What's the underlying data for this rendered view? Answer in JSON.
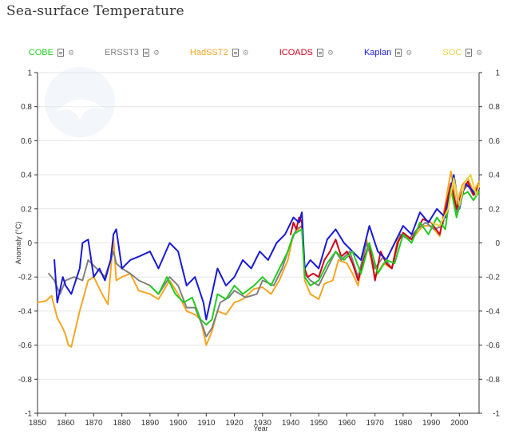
{
  "title": "Sea-surface Temperature",
  "chart_data": {
    "type": "line",
    "title": "Sea-surface Temperature",
    "xlabel": "Year",
    "ylabel": "Anomaly (°C)",
    "xlim": [
      1850,
      2007
    ],
    "ylim": [
      -1,
      1
    ],
    "x_ticks": [
      1850,
      1860,
      1870,
      1880,
      1890,
      1900,
      1910,
      1920,
      1930,
      1940,
      1950,
      1960,
      1970,
      1980,
      1990,
      2000
    ],
    "y_ticks": [
      -1,
      -0.8,
      -0.6,
      -0.4,
      -0.2,
      0,
      0.2,
      0.4,
      0.6,
      0.8,
      1
    ],
    "y_tick_labels": [
      "-1",
      "-0.8",
      "-0.6",
      "-0.4",
      "-0.2",
      "0",
      "0.2",
      "0.4",
      "0.6",
      "0.8",
      "1"
    ],
    "grid": "horizontal",
    "legend_position": "top-center",
    "series": [
      {
        "name": "HadSST2",
        "color": "#f5a623",
        "x": [
          1850,
          1853,
          1855,
          1857,
          1859,
          1860,
          1861,
          1862,
          1865,
          1868,
          1870,
          1873,
          1875,
          1877,
          1878,
          1880,
          1883,
          1886,
          1890,
          1893,
          1897,
          1900,
          1903,
          1906,
          1908,
          1910,
          1912,
          1914,
          1917,
          1920,
          1923,
          1927,
          1930,
          1933,
          1936,
          1939,
          1941,
          1944,
          1945,
          1947,
          1950,
          1952,
          1955,
          1957,
          1960,
          1962,
          1964,
          1967,
          1970,
          1973,
          1976,
          1978,
          1980,
          1983,
          1987,
          1990,
          1993,
          1997,
          1999,
          2001,
          2003,
          2005,
          2007
        ],
        "y": [
          -0.35,
          -0.34,
          -0.31,
          -0.44,
          -0.5,
          -0.54,
          -0.6,
          -0.61,
          -0.4,
          -0.22,
          -0.2,
          -0.3,
          -0.36,
          0.03,
          -0.22,
          -0.2,
          -0.18,
          -0.28,
          -0.3,
          -0.33,
          -0.22,
          -0.3,
          -0.4,
          -0.42,
          -0.45,
          -0.6,
          -0.52,
          -0.4,
          -0.42,
          -0.35,
          -0.33,
          -0.27,
          -0.26,
          -0.3,
          -0.22,
          -0.1,
          0.05,
          0.1,
          -0.22,
          -0.3,
          -0.33,
          -0.24,
          -0.22,
          -0.1,
          -0.12,
          -0.18,
          -0.25,
          0.02,
          -0.2,
          -0.12,
          -0.15,
          0.02,
          0.05,
          0.02,
          0.1,
          0.1,
          0.04,
          0.42,
          0.22,
          0.34,
          0.38,
          0.3,
          0.36
        ]
      },
      {
        "name": "ERSST3",
        "color": "#808080",
        "x": [
          1854,
          1856,
          1858,
          1860,
          1863,
          1866,
          1868,
          1871,
          1874,
          1877,
          1878,
          1880,
          1883,
          1886,
          1890,
          1893,
          1897,
          1900,
          1903,
          1906,
          1909,
          1910,
          1912,
          1915,
          1918,
          1920,
          1924,
          1928,
          1930,
          1934,
          1937,
          1940,
          1942,
          1944,
          1945,
          1947,
          1950,
          1953,
          1956,
          1958,
          1961,
          1964,
          1967,
          1970,
          1973,
          1976,
          1979,
          1982,
          1985,
          1988,
          1991,
          1994,
          1997,
          1999,
          2001,
          2003,
          2005,
          2007
        ],
        "y": [
          -0.18,
          -0.22,
          -0.3,
          -0.22,
          -0.2,
          -0.22,
          -0.1,
          -0.15,
          -0.2,
          -0.05,
          -0.12,
          -0.15,
          -0.18,
          -0.22,
          -0.25,
          -0.3,
          -0.2,
          -0.25,
          -0.38,
          -0.38,
          -0.5,
          -0.55,
          -0.5,
          -0.35,
          -0.32,
          -0.28,
          -0.32,
          -0.3,
          -0.22,
          -0.25,
          -0.15,
          0.0,
          0.08,
          0.1,
          -0.18,
          -0.22,
          -0.25,
          -0.15,
          -0.05,
          -0.1,
          -0.05,
          -0.2,
          0.0,
          -0.15,
          -0.08,
          -0.15,
          0.05,
          0.02,
          0.08,
          0.12,
          0.08,
          0.1,
          0.32,
          0.18,
          0.3,
          0.34,
          0.28,
          0.32
        ]
      },
      {
        "name": "ICOADS",
        "color": "#d0021b",
        "x": [
          1940,
          1941,
          1942,
          1943,
          1944,
          1945,
          1946,
          1948,
          1950,
          1952,
          1954,
          1956,
          1958,
          1960,
          1962,
          1964,
          1966,
          1968,
          1970,
          1972,
          1974,
          1976,
          1978,
          1980,
          1983,
          1987,
          1990,
          1993,
          1997,
          1999,
          2001,
          2003,
          2005,
          2007
        ],
        "y": [
          0.05,
          0.12,
          0.08,
          0.15,
          0.12,
          -0.15,
          -0.2,
          -0.18,
          -0.2,
          -0.1,
          -0.05,
          0.02,
          -0.08,
          -0.05,
          -0.12,
          -0.22,
          -0.1,
          0.0,
          -0.22,
          -0.05,
          -0.12,
          -0.15,
          0.0,
          0.06,
          0.02,
          0.14,
          0.12,
          0.05,
          0.35,
          0.2,
          0.3,
          0.36,
          0.28,
          0.34
        ]
      },
      {
        "name": "Kaplan",
        "color": "#1a1ad4",
        "x": [
          1856,
          1857,
          1859,
          1860,
          1862,
          1864,
          1865,
          1866,
          1868,
          1870,
          1872,
          1874,
          1876,
          1877,
          1878,
          1880,
          1883,
          1886,
          1890,
          1893,
          1897,
          1900,
          1903,
          1906,
          1909,
          1910,
          1912,
          1914,
          1917,
          1920,
          1923,
          1926,
          1929,
          1932,
          1935,
          1938,
          1941,
          1943,
          1944,
          1945,
          1947,
          1950,
          1953,
          1956,
          1959,
          1962,
          1965,
          1968,
          1971,
          1974,
          1977,
          1980,
          1983,
          1986,
          1989,
          1992,
          1995,
          1998,
          2000,
          2002,
          2004,
          2006,
          2007
        ],
        "y": [
          -0.1,
          -0.35,
          -0.2,
          -0.25,
          -0.3,
          -0.2,
          -0.15,
          0.0,
          0.02,
          -0.2,
          -0.15,
          -0.22,
          -0.1,
          0.05,
          0.08,
          -0.15,
          -0.1,
          -0.08,
          -0.05,
          -0.15,
          0.0,
          -0.05,
          -0.25,
          -0.2,
          -0.35,
          -0.45,
          -0.3,
          -0.15,
          -0.25,
          -0.2,
          -0.1,
          -0.15,
          -0.05,
          -0.1,
          0.0,
          0.05,
          0.15,
          0.12,
          0.18,
          -0.15,
          -0.1,
          -0.15,
          0.02,
          0.08,
          0.0,
          -0.05,
          -0.1,
          0.1,
          -0.05,
          -0.1,
          0.0,
          0.1,
          0.05,
          0.18,
          0.12,
          0.2,
          0.15,
          0.4,
          0.2,
          0.35,
          0.32,
          0.28,
          0.32
        ]
      },
      {
        "name": "COBE",
        "color": "#22cc22",
        "x": [
          1890,
          1893,
          1896,
          1899,
          1902,
          1905,
          1908,
          1910,
          1912,
          1914,
          1917,
          1920,
          1923,
          1927,
          1930,
          1933,
          1936,
          1939,
          1941,
          1944,
          1945,
          1947,
          1950,
          1953,
          1956,
          1959,
          1962,
          1965,
          1968,
          1971,
          1974,
          1977,
          1980,
          1983,
          1986,
          1989,
          1992,
          1995,
          1997,
          1999,
          2001,
          2003,
          2005,
          2007
        ],
        "y": [
          -0.25,
          -0.3,
          -0.2,
          -0.3,
          -0.35,
          -0.32,
          -0.45,
          -0.48,
          -0.45,
          -0.3,
          -0.33,
          -0.25,
          -0.3,
          -0.25,
          -0.2,
          -0.25,
          -0.15,
          -0.05,
          0.05,
          0.08,
          -0.2,
          -0.25,
          -0.22,
          -0.12,
          -0.05,
          -0.1,
          -0.05,
          -0.18,
          0.0,
          -0.18,
          -0.1,
          -0.12,
          0.05,
          0.0,
          0.12,
          0.05,
          0.15,
          0.08,
          0.32,
          0.15,
          0.28,
          0.3,
          0.25,
          0.3
        ]
      },
      {
        "name": "SOC",
        "color": "#e8d43a",
        "x": [
          1990,
          1993,
          1996,
          1998,
          2000,
          2002,
          2004,
          2006,
          2007
        ],
        "y": [
          0.12,
          0.1,
          0.2,
          0.38,
          0.22,
          0.36,
          0.4,
          0.28,
          0.34
        ]
      }
    ]
  }
}
